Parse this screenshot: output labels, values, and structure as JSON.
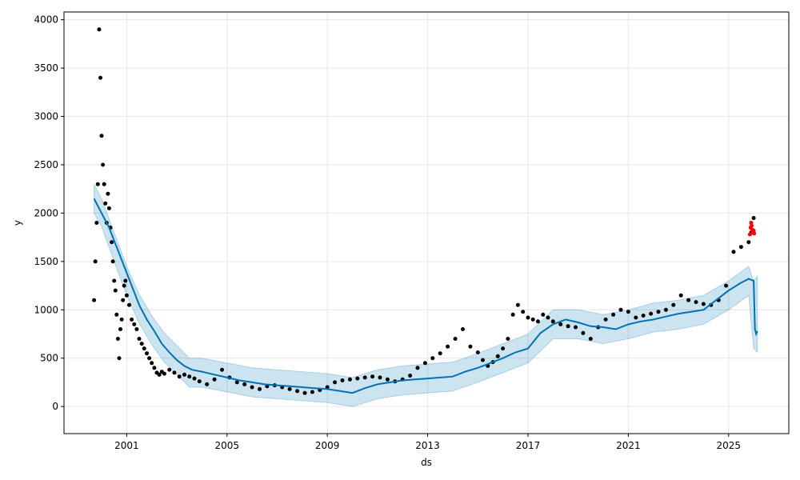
{
  "chart_data": {
    "type": "scatter",
    "title": "",
    "xlabel": "ds",
    "ylabel": "y",
    "xlim": [
      1998.5,
      2027.4
    ],
    "ylim": [
      -280,
      4080
    ],
    "grid": true,
    "x_ticks": [
      2001,
      2005,
      2009,
      2013,
      2017,
      2021,
      2025
    ],
    "y_ticks": [
      0,
      500,
      1000,
      1500,
      2000,
      2500,
      3000,
      3500,
      4000
    ],
    "colors": {
      "observed": "#000000",
      "recent_observed": "#ff0000",
      "forecast": "#0072b2",
      "interval": "#0072b2",
      "grid": "#e6e6e6"
    },
    "observed": {
      "x": [
        1999.7,
        1999.75,
        1999.8,
        1999.85,
        1999.9,
        1999.95,
        2000.0,
        2000.05,
        2000.1,
        2000.15,
        2000.2,
        2000.25,
        2000.3,
        2000.35,
        2000.4,
        2000.45,
        2000.5,
        2000.55,
        2000.6,
        2000.65,
        2000.7,
        2000.75,
        2000.8,
        2000.85,
        2000.9,
        2000.95,
        2001.0,
        2001.1,
        2001.2,
        2001.3,
        2001.4,
        2001.5,
        2001.6,
        2001.7,
        2001.8,
        2001.9,
        2002.0,
        2002.1,
        2002.2,
        2002.3,
        2002.4,
        2002.5,
        2002.7,
        2002.9,
        2003.1,
        2003.3,
        2003.5,
        2003.7,
        2003.9,
        2004.2,
        2004.5,
        2004.8,
        2005.1,
        2005.4,
        2005.7,
        2006.0,
        2006.3,
        2006.6,
        2006.9,
        2007.2,
        2007.5,
        2007.8,
        2008.1,
        2008.4,
        2008.7,
        2009.0,
        2009.3,
        2009.6,
        2009.9,
        2010.2,
        2010.5,
        2010.8,
        2011.1,
        2011.4,
        2011.7,
        2012.0,
        2012.3,
        2012.6,
        2012.9,
        2013.2,
        2013.5,
        2013.8,
        2014.1,
        2014.4,
        2014.7,
        2015.0,
        2015.2,
        2015.4,
        2015.6,
        2015.8,
        2016.0,
        2016.2,
        2016.4,
        2016.6,
        2016.8,
        2017.0,
        2017.2,
        2017.4,
        2017.6,
        2017.8,
        2018.0,
        2018.3,
        2018.6,
        2018.9,
        2019.2,
        2019.5,
        2019.8,
        2020.1,
        2020.4,
        2020.7,
        2021.0,
        2021.3,
        2021.6,
        2021.9,
        2022.2,
        2022.5,
        2022.8,
        2023.1,
        2023.4,
        2023.7,
        2024.0,
        2024.3,
        2024.6,
        2024.9,
        2025.2,
        2025.5,
        2025.8,
        2025.9,
        2026.0
      ],
      "y": [
        1100,
        1500,
        1900,
        2300,
        3900,
        3400,
        2800,
        2500,
        2300,
        2100,
        1900,
        2200,
        2050,
        1850,
        1700,
        1500,
        1300,
        1200,
        950,
        700,
        500,
        800,
        900,
        1100,
        1250,
        1300,
        1150,
        1050,
        900,
        850,
        800,
        700,
        650,
        600,
        550,
        500,
        450,
        400,
        350,
        330,
        360,
        340,
        380,
        350,
        310,
        330,
        310,
        290,
        260,
        230,
        280,
        380,
        300,
        250,
        230,
        200,
        180,
        210,
        220,
        200,
        180,
        160,
        140,
        150,
        170,
        200,
        250,
        270,
        280,
        290,
        300,
        310,
        300,
        280,
        260,
        280,
        320,
        400,
        450,
        500,
        550,
        620,
        700,
        800,
        620,
        560,
        480,
        420,
        460,
        520,
        600,
        700,
        950,
        1050,
        980,
        920,
        900,
        880,
        950,
        920,
        880,
        850,
        830,
        820,
        760,
        700,
        820,
        900,
        950,
        1000,
        980,
        920,
        940,
        960,
        980,
        1000,
        1050,
        1150,
        1100,
        1080,
        1060,
        1050,
        1100,
        1250,
        1600,
        1650,
        1700,
        1800,
        1950
      ]
    },
    "recent_observed": {
      "x": [
        2025.85,
        2025.88,
        2025.9,
        2025.92,
        2025.94,
        2025.96,
        2025.98,
        2026.0,
        2026.02
      ],
      "y": [
        1780,
        1850,
        1900,
        1870,
        1830,
        1810,
        1800,
        1820,
        1790
      ]
    },
    "forecast": {
      "x": [
        1999.7,
        2000.0,
        2000.3,
        2000.6,
        2000.9,
        2001.2,
        2001.5,
        2001.8,
        2002.1,
        2002.4,
        2002.7,
        2003.0,
        2003.3,
        2003.6,
        2004.0,
        2004.5,
        2005.0,
        2005.5,
        2006.0,
        2006.5,
        2007.0,
        2007.5,
        2008.0,
        2008.5,
        2009.0,
        2009.5,
        2010.0,
        2010.5,
        2011.0,
        2011.5,
        2012.0,
        2012.5,
        2013.0,
        2013.5,
        2014.0,
        2014.5,
        2015.0,
        2015.5,
        2016.0,
        2016.5,
        2017.0,
        2017.5,
        2018.0,
        2018.5,
        2019.0,
        2019.5,
        2020.0,
        2020.5,
        2021.0,
        2021.5,
        2022.0,
        2022.5,
        2023.0,
        2023.5,
        2024.0,
        2024.5,
        2025.0,
        2025.5,
        2025.8,
        2026.0,
        2026.05,
        2026.1,
        2026.15
      ],
      "y": [
        2150,
        2000,
        1850,
        1650,
        1450,
        1250,
        1050,
        900,
        780,
        650,
        560,
        480,
        420,
        380,
        360,
        330,
        300,
        270,
        250,
        230,
        220,
        210,
        200,
        190,
        180,
        160,
        140,
        190,
        230,
        250,
        270,
        280,
        290,
        300,
        310,
        360,
        400,
        450,
        500,
        560,
        600,
        760,
        850,
        900,
        870,
        830,
        820,
        800,
        850,
        880,
        900,
        930,
        960,
        980,
        1000,
        1100,
        1200,
        1280,
        1320,
        1300,
        800,
        750,
        780
      ]
    },
    "interval": {
      "x": [
        1999.7,
        2000.0,
        2000.5,
        2001.0,
        2001.5,
        2002.0,
        2002.5,
        2003.0,
        2003.5,
        2004.0,
        2005.0,
        2006.0,
        2007.0,
        2008.0,
        2009.0,
        2010.0,
        2011.0,
        2012.0,
        2013.0,
        2014.0,
        2015.0,
        2016.0,
        2017.0,
        2018.0,
        2019.0,
        2020.0,
        2021.0,
        2022.0,
        2023.0,
        2024.0,
        2025.0,
        2025.8,
        2026.0,
        2026.15
      ],
      "lower": [
        2000,
        1860,
        1500,
        1150,
        860,
        640,
        460,
        330,
        200,
        200,
        150,
        100,
        80,
        60,
        40,
        0,
        80,
        120,
        140,
        160,
        250,
        350,
        450,
        700,
        700,
        650,
        700,
        770,
        800,
        850,
        1000,
        1150,
        600,
        560
      ],
      "upper": [
        2300,
        2150,
        1800,
        1450,
        1160,
        940,
        760,
        630,
        500,
        500,
        450,
        400,
        380,
        360,
        340,
        300,
        380,
        420,
        440,
        460,
        550,
        650,
        750,
        1000,
        1000,
        950,
        1000,
        1070,
        1100,
        1150,
        1300,
        1450,
        1300,
        1350
      ]
    }
  }
}
